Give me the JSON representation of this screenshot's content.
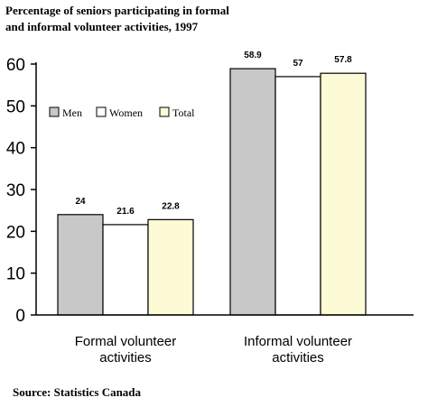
{
  "chart_data": {
    "type": "bar",
    "title_lines": [
      "Percentage of seniors participating in formal",
      "and informal volunteer activities, 1997"
    ],
    "categories": [
      [
        "Formal volunteer",
        "activities"
      ],
      [
        "Informal volunteer",
        "activities"
      ]
    ],
    "series": [
      {
        "name": "Men",
        "values": [
          24,
          58.9
        ],
        "labels": [
          "24",
          "58.9"
        ],
        "color": "#c8c8c8"
      },
      {
        "name": "Women",
        "values": [
          21.6,
          57
        ],
        "labels": [
          "21.6",
          "57"
        ],
        "color": "#ffffff"
      },
      {
        "name": "Total",
        "values": [
          22.8,
          57.8
        ],
        "labels": [
          "22.8",
          "57.8"
        ],
        "color": "#fdfbd5"
      }
    ],
    "yticks": [
      0,
      10,
      20,
      30,
      40,
      50,
      60
    ],
    "ylim": [
      0,
      60
    ],
    "grid": false,
    "legend_position": "top-left"
  },
  "source": "Source: Statistics Canada"
}
